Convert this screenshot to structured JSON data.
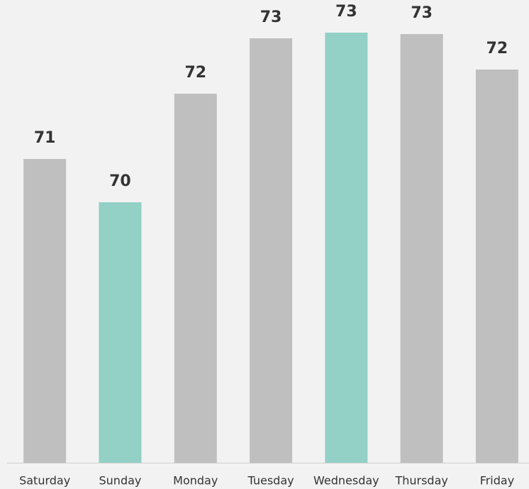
{
  "chart_data": {
    "type": "bar",
    "categories": [
      "Saturday",
      "Sunday",
      "Monday",
      "Tuesday",
      "Wednesday",
      "Thursday",
      "Friday"
    ],
    "values": [
      70.98,
      70.37,
      71.9,
      72.68,
      72.76,
      72.74,
      72.24
    ],
    "value_labels": [
      "71",
      "70",
      "72",
      "73",
      "73",
      "73",
      "72"
    ],
    "colors": [
      "#bfbfbf",
      "#93d0c6",
      "#bfbfbf",
      "#bfbfbf",
      "#93d0c6",
      "#bfbfbf",
      "#bfbfbf"
    ],
    "ylim": [
      66.7,
      73
    ]
  }
}
